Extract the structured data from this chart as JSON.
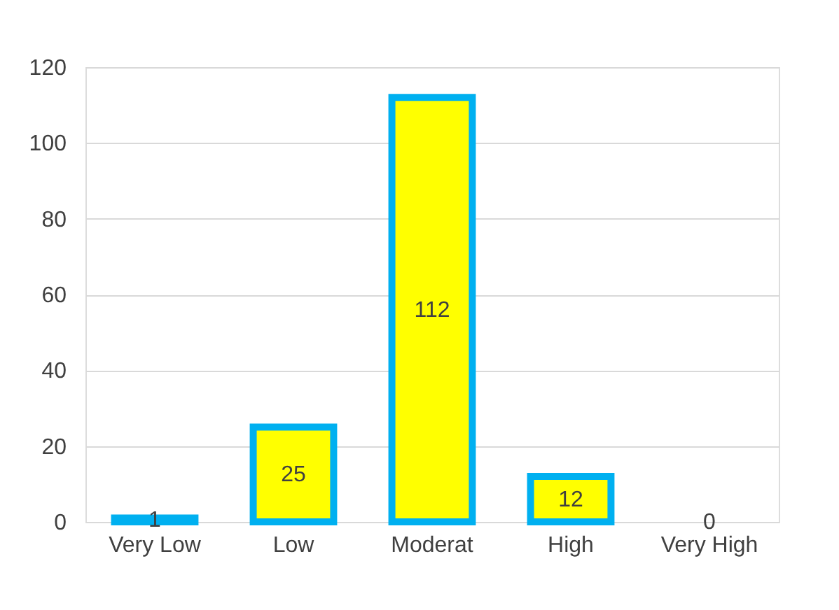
{
  "chart_data": {
    "type": "bar",
    "categories": [
      "Very Low",
      "Low",
      "Moderat",
      "High",
      "Very High"
    ],
    "values": [
      1,
      25,
      112,
      12,
      0
    ],
    "color": "#ffff00",
    "ylim": [
      0,
      120
    ],
    "yticks": [
      0,
      20,
      40,
      60,
      80,
      100,
      120
    ],
    "grid": "y",
    "data_labels": true
  }
}
